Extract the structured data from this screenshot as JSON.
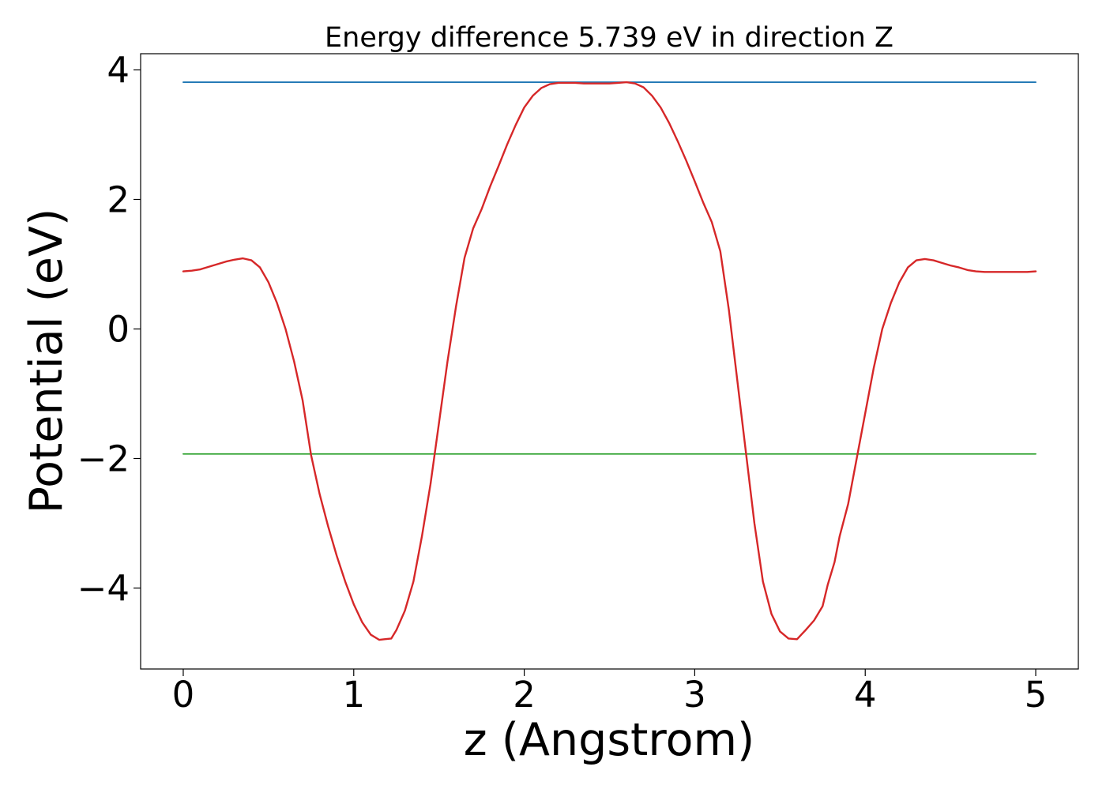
{
  "chart_data": {
    "type": "line",
    "title": "Energy difference 5.739 eV in direction Z",
    "xlabel": "z (Angstrom)",
    "ylabel": "Potential (eV)",
    "xlim": [
      -0.25,
      5.25
    ],
    "ylim": [
      -5.25,
      4.25
    ],
    "x_ticks": [
      0,
      1,
      2,
      3,
      4,
      5
    ],
    "x_tick_labels": [
      "0",
      "1",
      "2",
      "3",
      "4",
      "5"
    ],
    "y_ticks": [
      -4,
      -2,
      0,
      2,
      4
    ],
    "y_tick_labels": [
      "−4",
      "−2",
      "0",
      "2",
      "4"
    ],
    "grid": false,
    "legend": false,
    "series": [
      {
        "color": "#1f77b4",
        "x": [
          0,
          5
        ],
        "y": [
          3.81,
          3.81
        ]
      },
      {
        "color": "#2ca02c",
        "x": [
          0,
          5
        ],
        "y": [
          -1.93,
          -1.93
        ]
      },
      {
        "color": "#d62728",
        "x": [
          0,
          0.05,
          0.1,
          0.15,
          0.2,
          0.25,
          0.3,
          0.35,
          0.4,
          0.45,
          0.5,
          0.55,
          0.6,
          0.65,
          0.7,
          0.75,
          0.8,
          0.85,
          0.9,
          0.95,
          1.0,
          1.05,
          1.1,
          1.15,
          1.18,
          1.22,
          1.25,
          1.3,
          1.35,
          1.4,
          1.45,
          1.5,
          1.55,
          1.6,
          1.65,
          1.7,
          1.75,
          1.8,
          1.85,
          1.9,
          1.95,
          2.0,
          2.05,
          2.1,
          2.15,
          2.2,
          2.25,
          2.3,
          2.35,
          2.4,
          2.45,
          2.5,
          2.55,
          2.6,
          2.65,
          2.7,
          2.75,
          2.8,
          2.85,
          2.9,
          2.95,
          3.0,
          3.05,
          3.1,
          3.15,
          3.2,
          3.25,
          3.3,
          3.35,
          3.4,
          3.45,
          3.5,
          3.55,
          3.6,
          3.65,
          3.7,
          3.75,
          3.78,
          3.82,
          3.85,
          3.9,
          3.95,
          4.0,
          4.05,
          4.1,
          4.15,
          4.2,
          4.25,
          4.3,
          4.35,
          4.4,
          4.45,
          4.5,
          4.55,
          4.6,
          4.65,
          4.7,
          4.75,
          4.8,
          4.85,
          4.9,
          4.95,
          5.0
        ],
        "y": [
          0.89,
          0.9,
          0.92,
          0.96,
          1.0,
          1.04,
          1.07,
          1.09,
          1.06,
          0.95,
          0.72,
          0.4,
          0.0,
          -0.5,
          -1.1,
          -1.95,
          -2.55,
          -3.05,
          -3.5,
          -3.9,
          -4.25,
          -4.53,
          -4.72,
          -4.8,
          -4.79,
          -4.78,
          -4.65,
          -4.35,
          -3.9,
          -3.2,
          -2.4,
          -1.45,
          -0.5,
          0.35,
          1.1,
          1.55,
          1.85,
          2.2,
          2.52,
          2.85,
          3.15,
          3.42,
          3.6,
          3.72,
          3.78,
          3.8,
          3.8,
          3.8,
          3.79,
          3.79,
          3.79,
          3.79,
          3.8,
          3.81,
          3.79,
          3.73,
          3.6,
          3.42,
          3.18,
          2.9,
          2.6,
          2.28,
          1.95,
          1.65,
          1.2,
          0.3,
          -0.8,
          -1.9,
          -3.0,
          -3.9,
          -4.4,
          -4.67,
          -4.78,
          -4.79,
          -4.65,
          -4.5,
          -4.28,
          -3.95,
          -3.6,
          -3.2,
          -2.7,
          -2.0,
          -1.3,
          -0.6,
          0.0,
          0.4,
          0.72,
          0.95,
          1.06,
          1.08,
          1.06,
          1.02,
          0.98,
          0.95,
          0.91,
          0.89,
          0.88,
          0.88,
          0.88,
          0.88,
          0.88,
          0.88,
          0.89
        ]
      }
    ]
  }
}
